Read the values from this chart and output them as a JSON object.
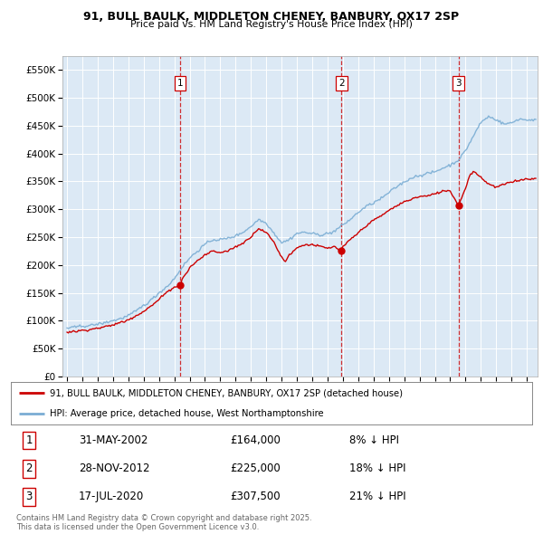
{
  "title": "91, BULL BAULK, MIDDLETON CHENEY, BANBURY, OX17 2SP",
  "subtitle": "Price paid vs. HM Land Registry's House Price Index (HPI)",
  "plot_bg_color": "#dce9f5",
  "grid_color": "#ffffff",
  "ylim": [
    0,
    575000
  ],
  "yticks": [
    0,
    50000,
    100000,
    150000,
    200000,
    250000,
    300000,
    350000,
    400000,
    450000,
    500000,
    550000
  ],
  "ytick_labels": [
    "£0",
    "£50K",
    "£100K",
    "£150K",
    "£200K",
    "£250K",
    "£300K",
    "£350K",
    "£400K",
    "£450K",
    "£500K",
    "£550K"
  ],
  "red_line_color": "#cc0000",
  "blue_line_color": "#7aadd4",
  "sale_marker_color": "#cc0000",
  "vline_color": "#cc0000",
  "legend_line1": "91, BULL BAULK, MIDDLETON CHENEY, BANBURY, OX17 2SP (detached house)",
  "legend_line2": "HPI: Average price, detached house, West Northamptonshire",
  "sale1_date": "31-MAY-2002",
  "sale1_price": "£164,000",
  "sale1_pct": "8% ↓ HPI",
  "sale2_date": "28-NOV-2012",
  "sale2_price": "£225,000",
  "sale2_pct": "18% ↓ HPI",
  "sale3_date": "17-JUL-2020",
  "sale3_price": "£307,500",
  "sale3_pct": "21% ↓ HPI",
  "footer": "Contains HM Land Registry data © Crown copyright and database right 2025.\nThis data is licensed under the Open Government Licence v3.0.",
  "sale1_x": 2002.38,
  "sale1_y": 164000,
  "sale2_x": 2012.91,
  "sale2_y": 225000,
  "sale3_x": 2020.54,
  "sale3_y": 307500,
  "xmin": 1994.7,
  "xmax": 2025.7
}
